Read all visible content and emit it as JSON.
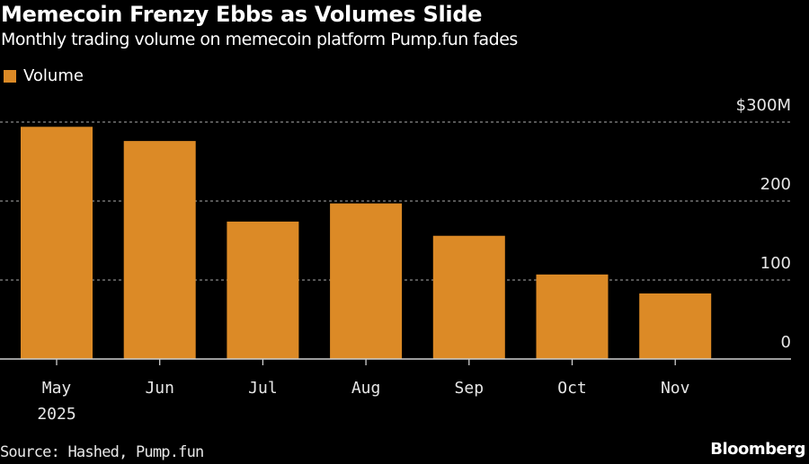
{
  "header": {
    "title": "Memecoin Frenzy Ebbs as Volumes Slide",
    "subtitle": "Monthly trading volume on memecoin platform Pump.fun fades"
  },
  "legend": {
    "label": "Volume",
    "color": "#dc8a26"
  },
  "footer": {
    "source": "Source: Hashed, Pump.fun",
    "brand": "Bloomberg"
  },
  "chart_data": {
    "type": "bar",
    "title": "Memecoin Frenzy Ebbs as Volumes Slide",
    "subtitle": "Monthly trading volume on memecoin platform Pump.fun fades",
    "xlabel": "",
    "ylabel": "",
    "categories": [
      "May",
      "Jun",
      "Jul",
      "Aug",
      "Sep",
      "Oct",
      "Nov"
    ],
    "x_sublabels": [
      "2025",
      "",
      "",
      "",
      "",
      "",
      ""
    ],
    "series": [
      {
        "name": "Volume",
        "color": "#dc8a26",
        "values": [
          294,
          276,
          174,
          197,
          156,
          107,
          83
        ]
      }
    ],
    "unit": "$M",
    "ylim": [
      0,
      300
    ],
    "yticks": [
      0,
      100,
      200,
      300
    ],
    "ytick_labels": [
      "0",
      "100",
      "200",
      "$300M"
    ],
    "grid": true,
    "legend_position": "top-left",
    "y_axis_position": "right"
  }
}
